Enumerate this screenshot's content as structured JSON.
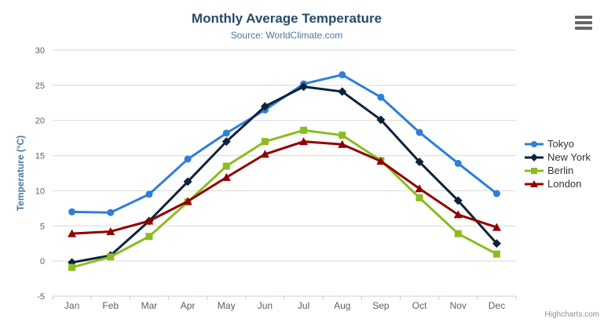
{
  "header": {
    "title": "Monthly Average Temperature",
    "subtitle": "Source: WorldClimate.com"
  },
  "credits": "Highcharts.com",
  "chart_data": {
    "type": "line",
    "title": "Monthly Average Temperature",
    "subtitle": "Source: WorldClimate.com",
    "xlabel": "",
    "ylabel": "Temperature (°C)",
    "ylim": [
      -5,
      30
    ],
    "ytick_step": 5,
    "yticks": [
      -5,
      0,
      5,
      10,
      15,
      20,
      25,
      30
    ],
    "grid": true,
    "legend_position": "right",
    "categories": [
      "Jan",
      "Feb",
      "Mar",
      "Apr",
      "May",
      "Jun",
      "Jul",
      "Aug",
      "Sep",
      "Oct",
      "Nov",
      "Dec"
    ],
    "series": [
      {
        "name": "Tokyo",
        "color": "#2f7ed8",
        "marker": "circle",
        "values": [
          7.0,
          6.9,
          9.5,
          14.5,
          18.2,
          21.5,
          25.2,
          26.5,
          23.3,
          18.3,
          13.9,
          9.6
        ]
      },
      {
        "name": "New York",
        "color": "#0d233a",
        "marker": "diamond",
        "values": [
          -0.2,
          0.8,
          5.7,
          11.3,
          17.0,
          22.0,
          24.8,
          24.1,
          20.1,
          14.1,
          8.6,
          2.5
        ]
      },
      {
        "name": "Berlin",
        "color": "#8bbc21",
        "marker": "square",
        "values": [
          -0.9,
          0.6,
          3.5,
          8.4,
          13.5,
          17.0,
          18.6,
          17.9,
          14.3,
          9.0,
          3.9,
          1.0
        ]
      },
      {
        "name": "London",
        "color": "#910000",
        "marker": "triangle",
        "values": [
          3.9,
          4.2,
          5.7,
          8.5,
          11.9,
          15.2,
          17.0,
          16.6,
          14.2,
          10.3,
          6.6,
          4.8
        ]
      }
    ]
  },
  "colors": {
    "gridline": "#d8d8d8",
    "axis_line": "#c0d0e0",
    "tick_label": "#606060",
    "title": "#274b6d",
    "subtitle": "#4d759e",
    "axis_title": "#4d759e",
    "legend_text": "#333333",
    "credits": "#909090",
    "hamburger": "#666666"
  }
}
